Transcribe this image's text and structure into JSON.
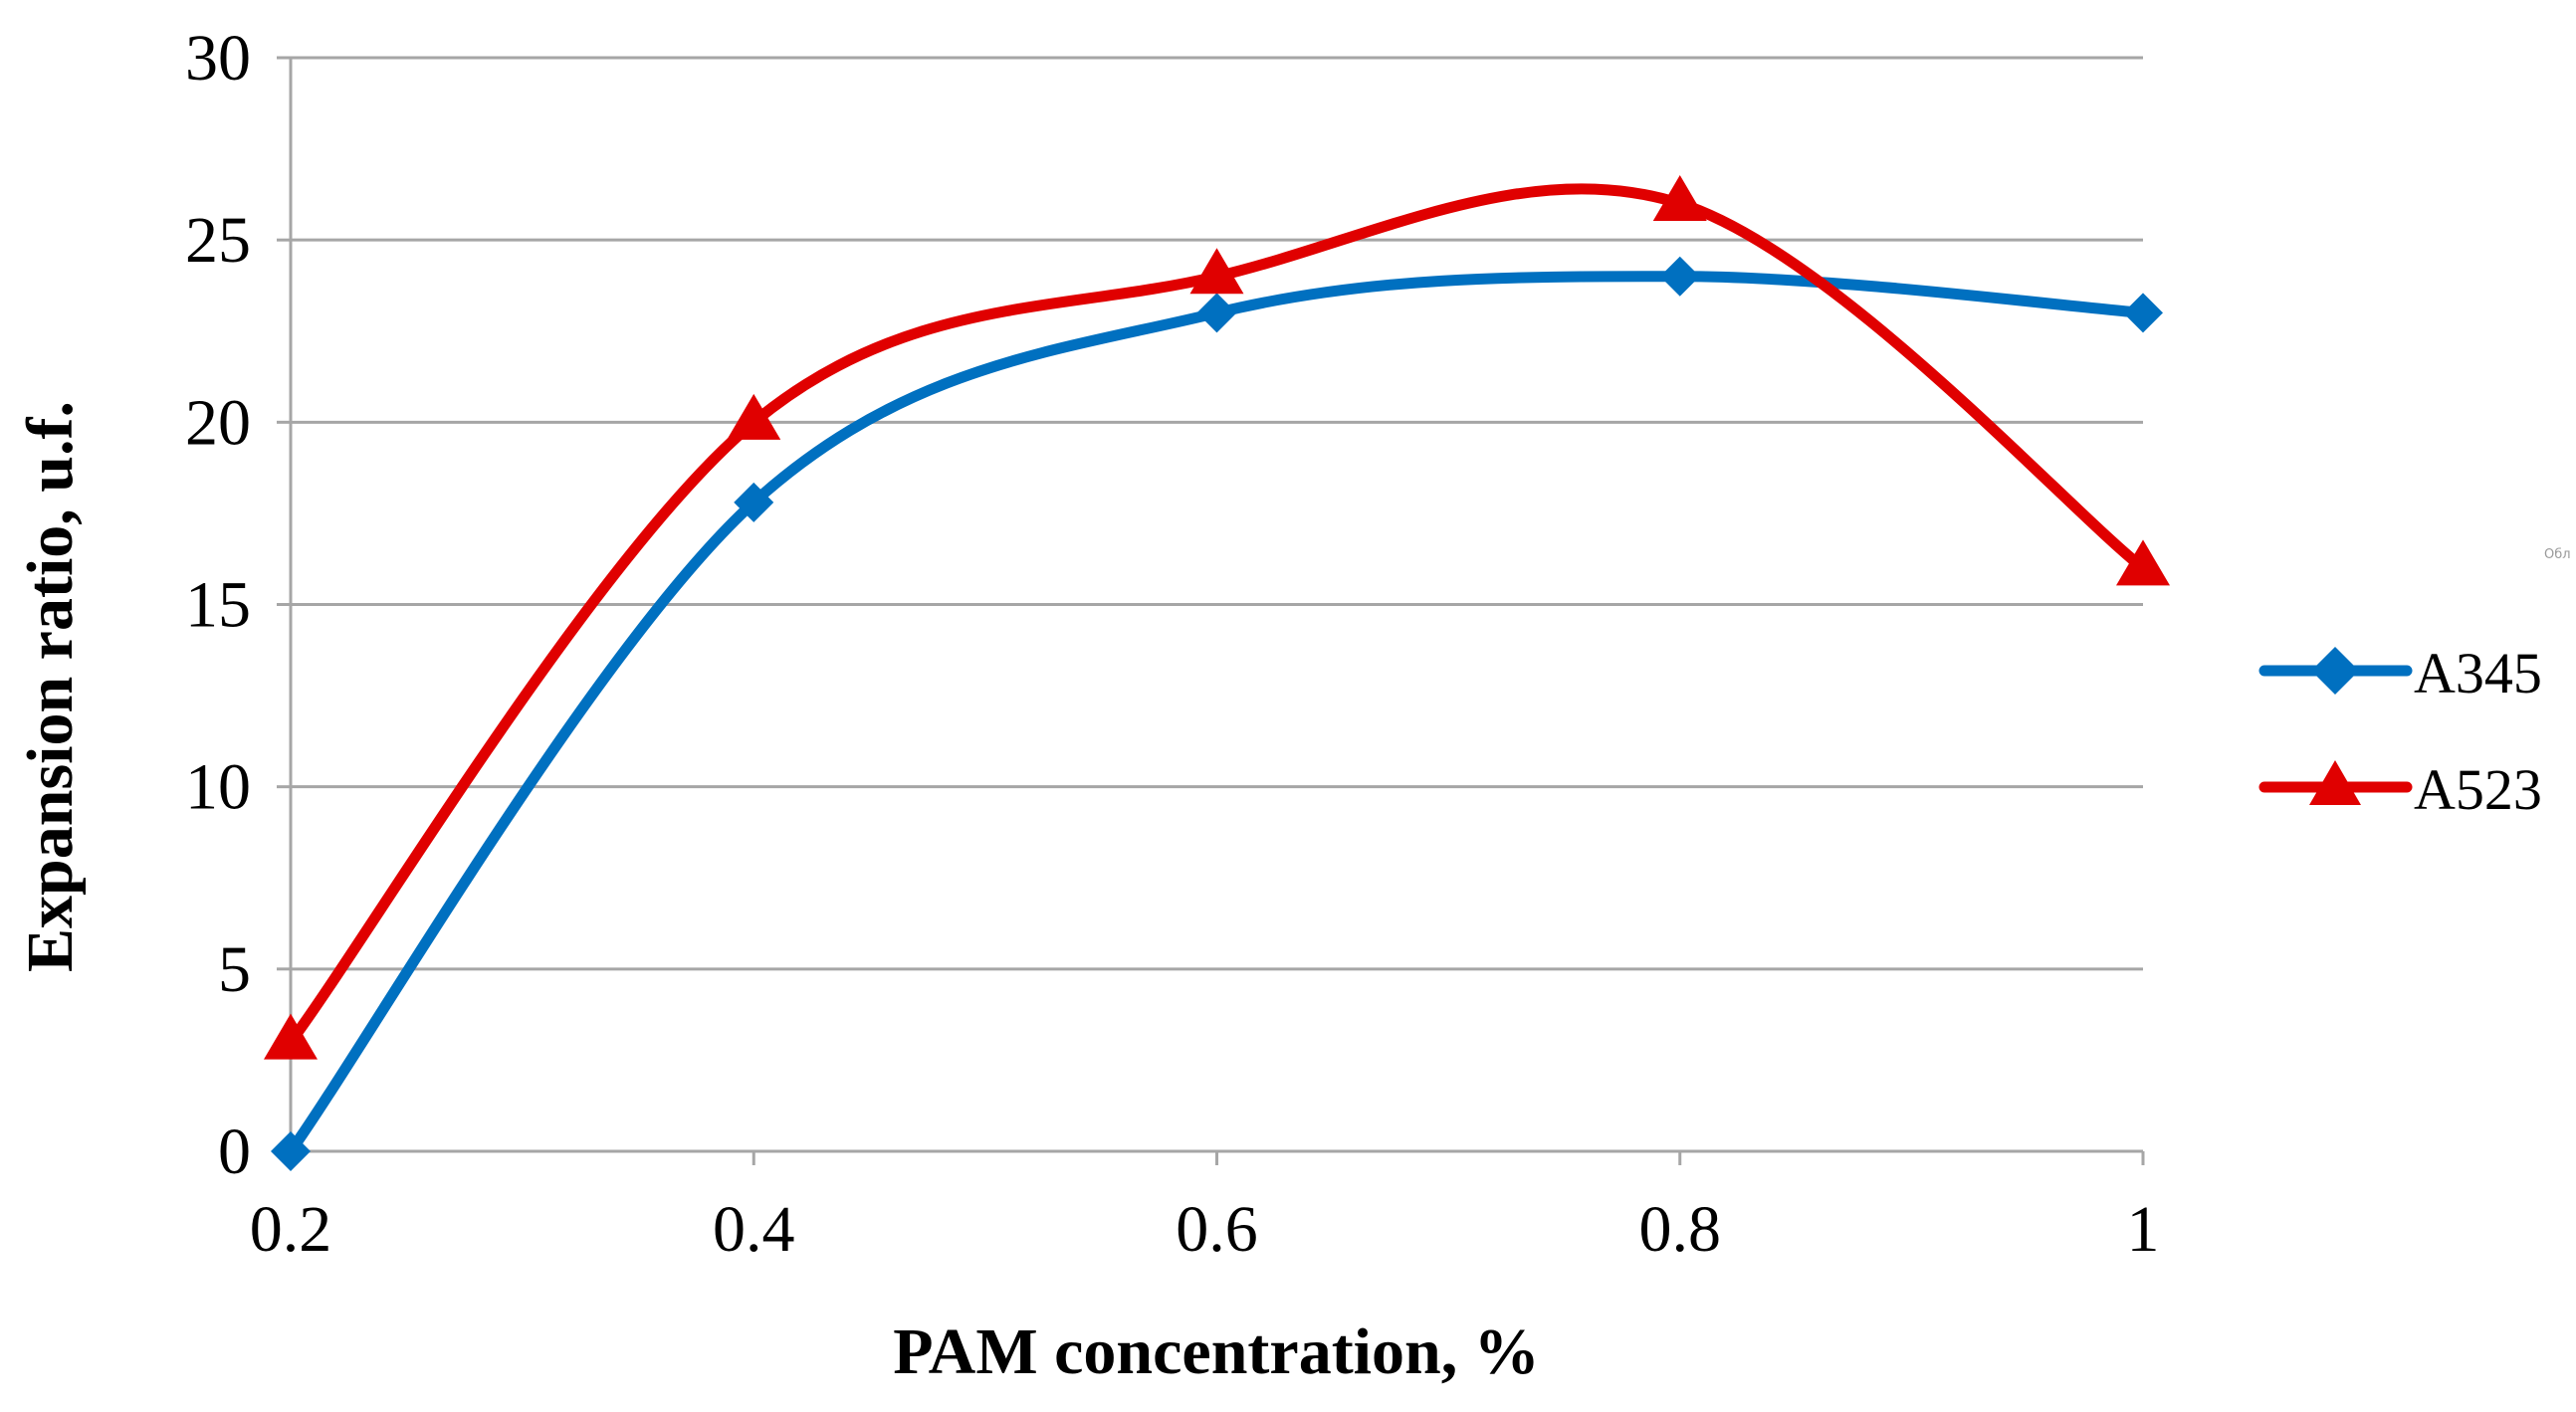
{
  "chart_data": {
    "type": "line",
    "smooth": true,
    "title": "",
    "xlabel": "PAM concentration, %",
    "ylabel": "Expansion ratio, u.f.",
    "x": [
      0.2,
      0.4,
      0.6,
      0.8,
      1.0
    ],
    "x_tick_labels": [
      "0.2",
      "0.4",
      "0.6",
      "0.8",
      "1"
    ],
    "xlim": [
      0.2,
      1.0
    ],
    "ylim": [
      0,
      30
    ],
    "y_ticks": [
      0,
      5,
      10,
      15,
      20,
      25,
      30
    ],
    "y_tick_labels": [
      "0",
      "5",
      "10",
      "15",
      "20",
      "25",
      "30"
    ],
    "grid": "horizontal",
    "legend": "right",
    "series": [
      {
        "name": "A345",
        "color": "#0070C0",
        "marker": "diamond",
        "values": [
          0,
          17.8,
          23,
          24,
          23
        ]
      },
      {
        "name": "A523",
        "color": "#E00000",
        "marker": "triangle",
        "values": [
          3,
          20,
          24,
          26,
          16
        ]
      }
    ]
  },
  "colors": {
    "grid": "#a6a6a6",
    "axis": "#a6a6a6",
    "background": "#ffffff"
  },
  "watermark": "Обл"
}
